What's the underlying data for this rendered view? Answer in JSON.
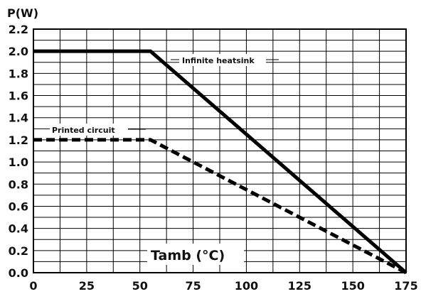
{
  "chart_data": {
    "type": "line",
    "ylabel": "P(W)",
    "xlabel": "Tamb (°C)",
    "xlim": [
      0,
      175
    ],
    "ylim": [
      0,
      2.2
    ],
    "x_ticks": [
      0,
      25,
      50,
      75,
      100,
      125,
      150,
      175
    ],
    "y_ticks": [
      0.0,
      0.2,
      0.4,
      0.6,
      0.8,
      1.0,
      1.2,
      1.4,
      1.6,
      1.8,
      2.0,
      2.2
    ],
    "x_tick_labels": [
      "0",
      "25",
      "50",
      "75",
      "100",
      "125",
      "150",
      "175"
    ],
    "y_tick_labels": [
      "0.0",
      "0.2",
      "0.4",
      "0.6",
      "0.8",
      "1.0",
      "1.2",
      "1.4",
      "1.6",
      "1.8",
      "2.0",
      "2.2"
    ],
    "grid": true,
    "series": [
      {
        "name": "Infinite heatsink",
        "style": "solid",
        "x": [
          0,
          55,
          175
        ],
        "y": [
          2.0,
          2.0,
          0.0
        ]
      },
      {
        "name": "Printed circuit",
        "style": "dashed",
        "x": [
          0,
          55,
          175
        ],
        "y": [
          1.2,
          1.2,
          0.0
        ]
      }
    ]
  }
}
